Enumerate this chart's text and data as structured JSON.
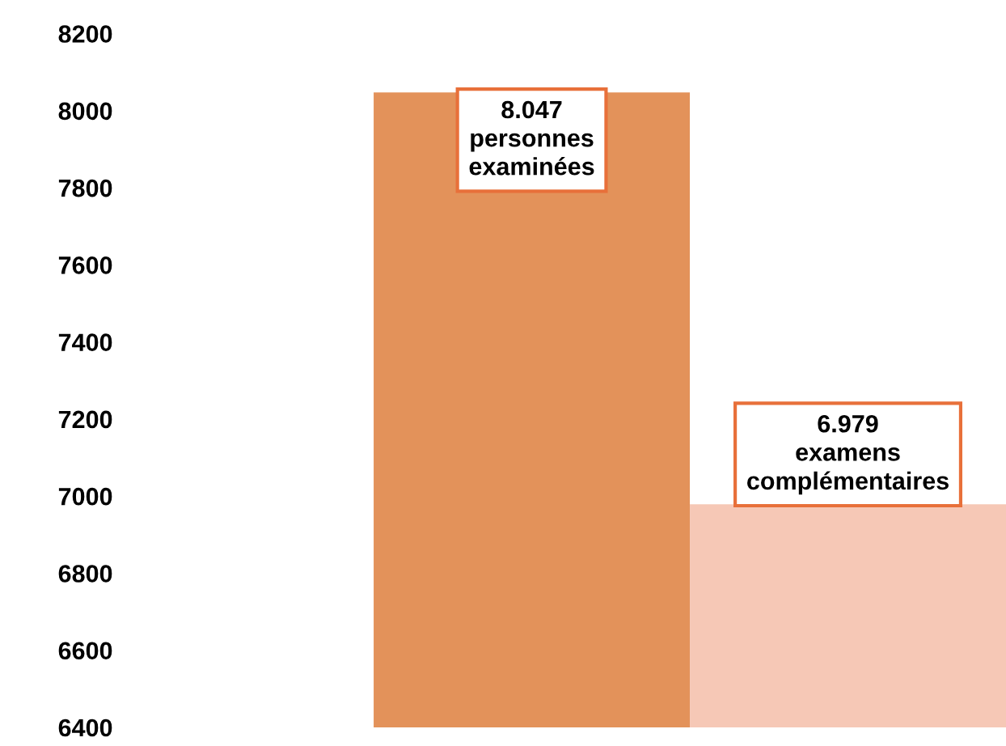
{
  "chart_data": {
    "type": "bar",
    "categories": [
      null,
      null
    ],
    "values": [
      8047,
      6979
    ],
    "colors": [
      "#e3925a",
      "#f6c8b6"
    ],
    "value_labels": [
      "8.047\npersonnes\nexaminées",
      "6.979\nexamens\ncomplémentaires"
    ],
    "ylim": [
      6400,
      8200
    ],
    "yticks": [
      6400,
      6600,
      6800,
      7000,
      7200,
      7400,
      7600,
      7800,
      8000,
      8200
    ],
    "tick_labels": "y",
    "grid": false,
    "legend": false
  }
}
